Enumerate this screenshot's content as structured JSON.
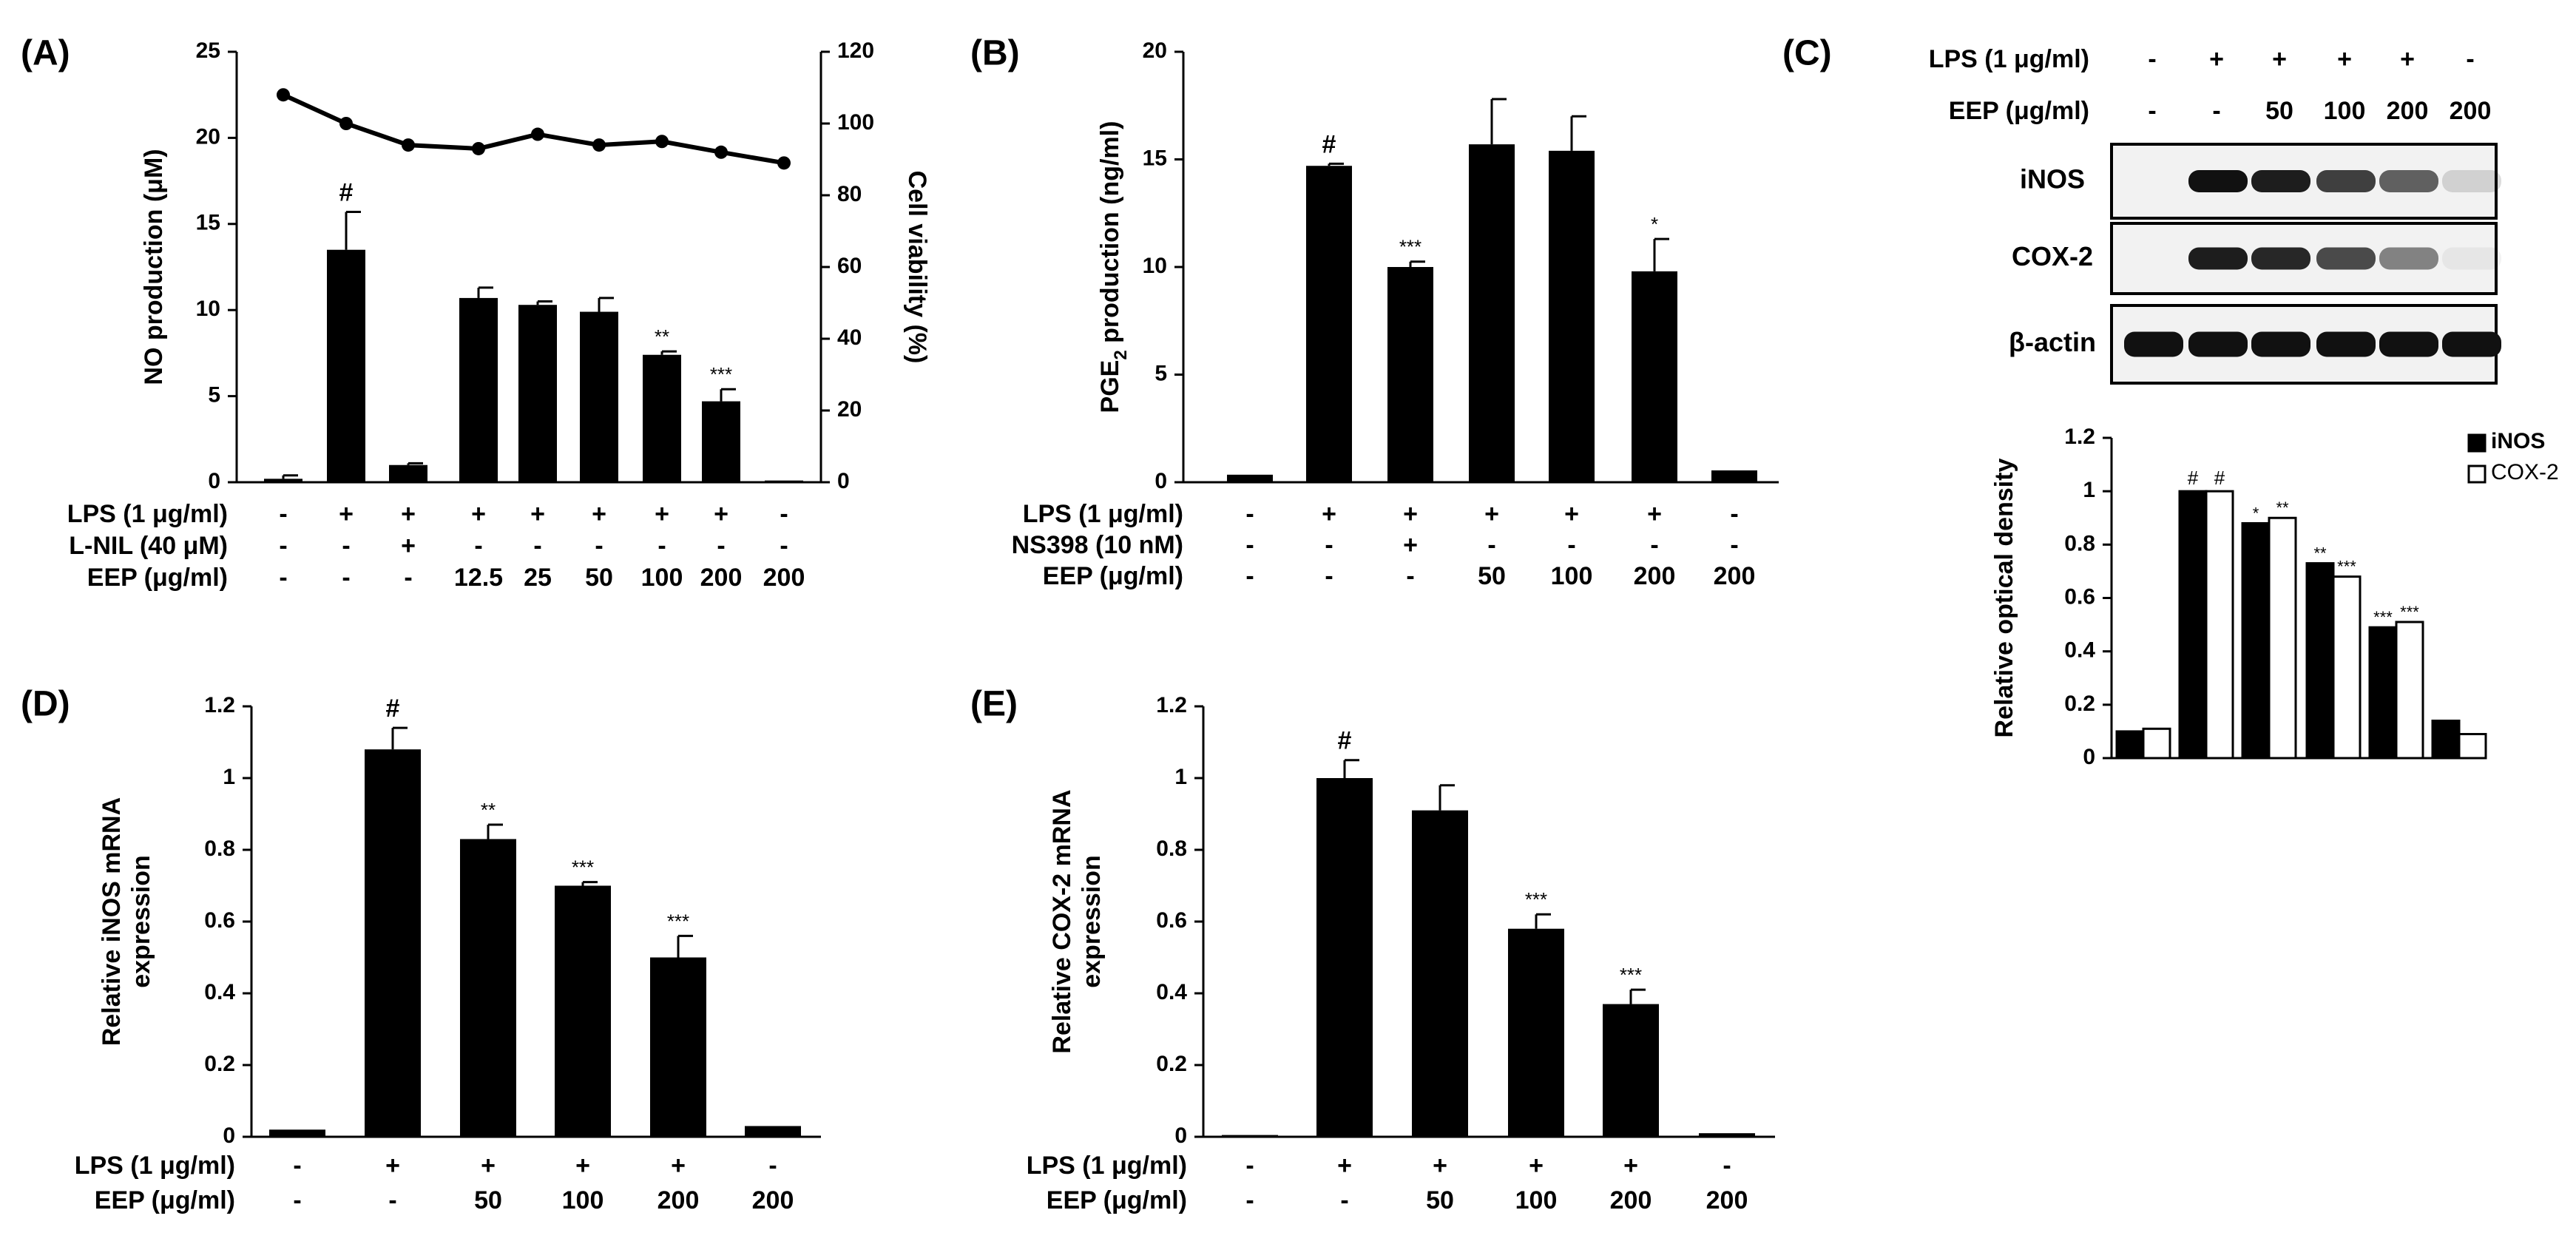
{
  "chart_data": [
    {
      "panel": "(A)",
      "type": "bar",
      "ylabel": "NO production (μM)",
      "ylabel_right": "Cell viability (%)",
      "ylim": [
        0,
        25
      ],
      "yticks": [
        "0",
        "5",
        "10",
        "15",
        "20",
        "25"
      ],
      "ylim_right": [
        0,
        120
      ],
      "yticks_right": [
        "0",
        "20",
        "40",
        "60",
        "80",
        "100",
        "120"
      ],
      "values": [
        0.2,
        13.5,
        1.0,
        10.7,
        10.3,
        9.9,
        7.4,
        4.7,
        0.1
      ],
      "errors": [
        0.2,
        2.2,
        0.1,
        0.6,
        0.2,
        0.8,
        0.2,
        0.7,
        0
      ],
      "sig": [
        "",
        "#",
        "",
        "",
        "",
        "",
        "**",
        "***",
        ""
      ],
      "line_series": {
        "name": "Cell viability",
        "values": [
          108,
          100,
          94,
          93,
          97,
          94,
          95,
          92,
          89
        ]
      },
      "condition_rows": [
        {
          "label": "LPS (1 μg/ml)",
          "values": [
            "-",
            "+",
            "+",
            "+",
            "+",
            "+",
            "+",
            "+",
            "-"
          ]
        },
        {
          "label": "L-NIL (40 μM)",
          "values": [
            "-",
            "-",
            "+",
            "-",
            "-",
            "-",
            "-",
            "-",
            "-"
          ]
        },
        {
          "label": "EEP (μg/ml)",
          "values": [
            "-",
            "-",
            "-",
            "12.5",
            "25",
            "50",
            "100",
            "200",
            "200"
          ]
        }
      ]
    },
    {
      "panel": "(B)",
      "type": "bar",
      "ylabel": "PGE2 production (ng/ml)",
      "ylim": [
        0,
        20
      ],
      "yticks": [
        "0",
        "5",
        "10",
        "15",
        "20"
      ],
      "values": [
        0.35,
        14.7,
        10.0,
        15.7,
        15.4,
        9.8,
        0.55
      ],
      "errors": [
        0,
        0.1,
        0.25,
        2.1,
        1.6,
        1.5,
        0
      ],
      "sig": [
        "",
        "#",
        "***",
        "",
        "",
        "*",
        ""
      ],
      "condition_rows": [
        {
          "label": "LPS (1 μg/ml)",
          "values": [
            "-",
            "+",
            "+",
            "+",
            "+",
            "+",
            "-"
          ]
        },
        {
          "label": "NS398 (10 nM)",
          "values": [
            "-",
            "-",
            "+",
            "-",
            "-",
            "-",
            "-"
          ]
        },
        {
          "label": "EEP (μg/ml)",
          "values": [
            "-",
            "-",
            "-",
            "50",
            "100",
            "200",
            "200"
          ]
        }
      ]
    },
    {
      "panel": "(C)",
      "type": "bar",
      "ylabel": "Relative optical density",
      "ylim": [
        0,
        1.2
      ],
      "yticks": [
        "0",
        "0.2",
        "0.4",
        "0.6",
        "0.8",
        "1",
        "1.2"
      ],
      "legend_position": "top-right",
      "series": [
        {
          "name": "iNOS",
          "values": [
            0.1,
            1.0,
            0.88,
            0.73,
            0.49,
            0.14
          ],
          "sig": [
            "",
            "#",
            "*",
            "**",
            "***",
            ""
          ]
        },
        {
          "name": "COX-2",
          "values": [
            0.11,
            1.0,
            0.9,
            0.68,
            0.51,
            0.09
          ],
          "sig": [
            "",
            "#",
            "**",
            "***",
            "***",
            ""
          ]
        }
      ],
      "blot": {
        "condition_rows": [
          {
            "label": "LPS (1 μg/ml)",
            "values": [
              "-",
              "+",
              "+",
              "+",
              "+",
              "-"
            ]
          },
          {
            "label": "EEP (μg/ml)",
            "values": [
              "-",
              "-",
              "50",
              "100",
              "200",
              "200"
            ]
          }
        ],
        "bands": [
          {
            "label": "iNOS",
            "intensity": [
              0.0,
              1.0,
              0.95,
              0.8,
              0.65,
              0.15
            ]
          },
          {
            "label": "COX-2",
            "intensity": [
              0.0,
              0.95,
              0.9,
              0.75,
              0.5,
              0.05
            ]
          },
          {
            "label": "β-actin",
            "intensity": [
              1.0,
              1.0,
              1.0,
              1.0,
              1.0,
              1.0
            ]
          }
        ]
      }
    },
    {
      "panel": "(D)",
      "type": "bar",
      "ylabel": "Relative iNOS mRNA expression",
      "ylabel_lines": [
        "Relative iNOS mRNA",
        "expression"
      ],
      "ylim": [
        0,
        1.2
      ],
      "yticks": [
        "0",
        "0.2",
        "0.4",
        "0.6",
        "0.8",
        "1",
        "1.2"
      ],
      "values": [
        0.02,
        1.08,
        0.83,
        0.7,
        0.5,
        0.03
      ],
      "errors": [
        0,
        0.06,
        0.04,
        0.01,
        0.06,
        0
      ],
      "sig": [
        "",
        "#",
        "**",
        "***",
        "***",
        ""
      ],
      "condition_rows": [
        {
          "label": "LPS (1 μg/ml)",
          "values": [
            "-",
            "+",
            "+",
            "+",
            "+",
            "-"
          ]
        },
        {
          "label": "EEP (μg/ml)",
          "values": [
            "-",
            "-",
            "50",
            "100",
            "200",
            "200"
          ]
        }
      ]
    },
    {
      "panel": "(E)",
      "type": "bar",
      "ylabel": "Relative COX-2 mRNA expression",
      "ylabel_lines": [
        "Relative COX-2 mRNA",
        "expression"
      ],
      "ylim": [
        0,
        1.2
      ],
      "yticks": [
        "0",
        "0.2",
        "0.4",
        "0.6",
        "0.8",
        "1",
        "1.2"
      ],
      "values": [
        0.005,
        1.0,
        0.91,
        0.58,
        0.37,
        0.01
      ],
      "errors": [
        0,
        0.05,
        0.07,
        0.04,
        0.04,
        0
      ],
      "sig": [
        "",
        "#",
        "",
        "***",
        "***",
        ""
      ],
      "condition_rows": [
        {
          "label": "LPS (1 μg/ml)",
          "values": [
            "-",
            "+",
            "+",
            "+",
            "+",
            "-"
          ]
        },
        {
          "label": "EEP (μg/ml)",
          "values": [
            "-",
            "-",
            "50",
            "100",
            "200",
            "200"
          ]
        }
      ]
    }
  ]
}
